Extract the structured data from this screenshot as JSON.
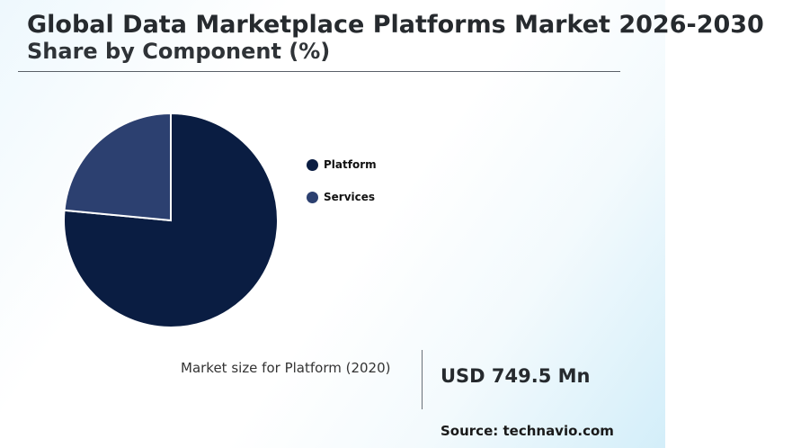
{
  "title": "Global Data Marketplace Platforms Market 2026-2030",
  "subtitle": "Share by Component (%)",
  "chart_data": {
    "type": "pie",
    "categories": [
      "Platform",
      "Services"
    ],
    "values": [
      76.5,
      23.5
    ],
    "colors": [
      "#0a1d42",
      "#2c4070"
    ],
    "legend_position": "right"
  },
  "highlight": {
    "label": "Market size for Platform (2020)",
    "value": "USD 749.5 Mn"
  },
  "source": "Source: technavio.com"
}
